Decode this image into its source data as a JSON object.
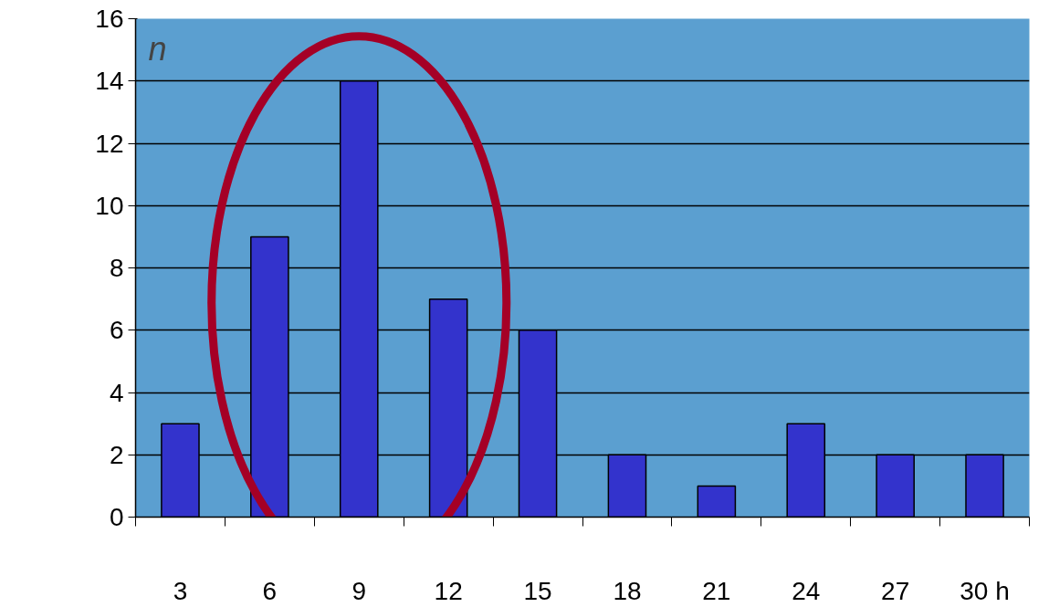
{
  "chart_data": {
    "type": "bar",
    "ylabel": "n",
    "categories": [
      "3",
      "6",
      "9",
      "12",
      "15",
      "18",
      "21",
      "24",
      "27",
      "30 h"
    ],
    "values": [
      3,
      9,
      14,
      7,
      6,
      2,
      1,
      3,
      2,
      2
    ],
    "color": "#3333cc",
    "ylim": [
      0,
      16
    ],
    "yticks": [
      0,
      2,
      4,
      6,
      8,
      10,
      12,
      14,
      16
    ],
    "grid": "y"
  }
}
